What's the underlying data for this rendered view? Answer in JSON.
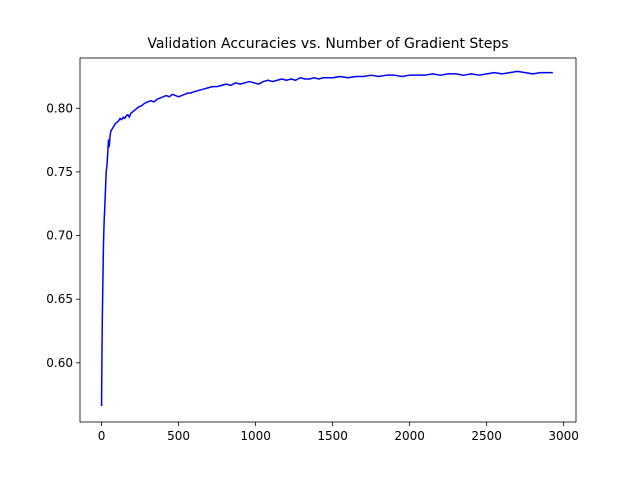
{
  "chart_data": {
    "type": "line",
    "title": "Validation Accuracies vs. Number of Gradient Steps",
    "xlabel": "",
    "ylabel": "",
    "xlim": [
      -140,
      3080
    ],
    "ylim": [
      0.5535,
      0.8395
    ],
    "xticks": [
      0,
      500,
      1000,
      1500,
      2000,
      2500,
      3000
    ],
    "yticks": [
      0.6,
      0.65,
      0.7,
      0.75,
      0.8
    ],
    "xtick_labels": [
      "0",
      "500",
      "1000",
      "1500",
      "2000",
      "2500",
      "3000"
    ],
    "ytick_labels": [
      "0.60",
      "0.65",
      "0.70",
      "0.75",
      "0.80"
    ],
    "grid": false,
    "legend": "none",
    "series_color": "#0000ff",
    "series": [
      {
        "x": [
          0,
          2,
          5,
          8,
          10,
          12,
          15,
          18,
          20,
          25,
          30,
          35,
          40,
          45,
          50,
          55,
          60,
          70,
          80,
          90,
          100,
          110,
          120,
          130,
          140,
          150,
          160,
          170,
          180,
          190,
          200,
          210,
          220,
          240,
          260,
          280,
          300,
          320,
          340,
          360,
          380,
          400,
          420,
          440,
          460,
          480,
          500,
          520,
          540,
          560,
          580,
          600,
          630,
          660,
          690,
          720,
          750,
          780,
          810,
          840,
          870,
          900,
          930,
          960,
          990,
          1020,
          1050,
          1080,
          1110,
          1140,
          1170,
          1200,
          1230,
          1260,
          1290,
          1320,
          1350,
          1380,
          1410,
          1440,
          1470,
          1500,
          1550,
          1600,
          1650,
          1700,
          1750,
          1800,
          1850,
          1900,
          1950,
          2000,
          2050,
          2100,
          2150,
          2200,
          2250,
          2300,
          2350,
          2400,
          2450,
          2500,
          2550,
          2600,
          2650,
          2700,
          2750,
          2800,
          2850,
          2900,
          2930
        ],
        "y": [
          0.566,
          0.6,
          0.635,
          0.66,
          0.675,
          0.69,
          0.705,
          0.715,
          0.72,
          0.735,
          0.75,
          0.755,
          0.765,
          0.775,
          0.77,
          0.778,
          0.782,
          0.784,
          0.786,
          0.788,
          0.789,
          0.79,
          0.792,
          0.791,
          0.793,
          0.792,
          0.794,
          0.795,
          0.793,
          0.796,
          0.797,
          0.798,
          0.799,
          0.801,
          0.802,
          0.804,
          0.805,
          0.806,
          0.805,
          0.807,
          0.808,
          0.809,
          0.81,
          0.809,
          0.811,
          0.81,
          0.809,
          0.81,
          0.811,
          0.812,
          0.812,
          0.813,
          0.814,
          0.815,
          0.816,
          0.817,
          0.817,
          0.818,
          0.819,
          0.818,
          0.82,
          0.819,
          0.82,
          0.821,
          0.82,
          0.819,
          0.821,
          0.822,
          0.821,
          0.822,
          0.823,
          0.822,
          0.823,
          0.822,
          0.824,
          0.823,
          0.823,
          0.824,
          0.823,
          0.824,
          0.824,
          0.824,
          0.825,
          0.824,
          0.825,
          0.825,
          0.826,
          0.825,
          0.826,
          0.826,
          0.825,
          0.826,
          0.826,
          0.826,
          0.827,
          0.826,
          0.827,
          0.827,
          0.826,
          0.827,
          0.826,
          0.827,
          0.828,
          0.827,
          0.828,
          0.829,
          0.828,
          0.827,
          0.828,
          0.828,
          0.828
        ]
      }
    ]
  }
}
